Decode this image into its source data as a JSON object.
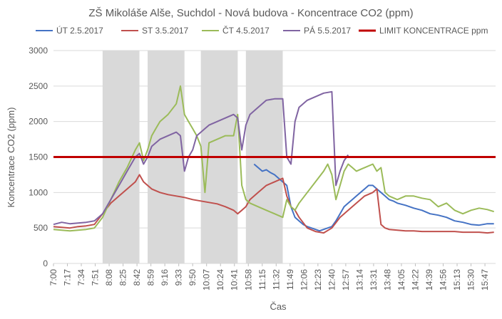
{
  "chart_data": {
    "type": "line",
    "title": "ZŠ Mikoláše Alše, Suchdol - Nová budova - Koncentrace CO2 (ppm)",
    "xlabel": "Čas",
    "ylabel": "Koncentrace CO2 (ppm)",
    "ylim": [
      0,
      3000
    ],
    "yticks": [
      "0",
      "500",
      "1000",
      "1500",
      "2000",
      "2500",
      "3000"
    ],
    "xlim": [
      "7:00",
      "16:00"
    ],
    "xticks": [
      "7:00",
      "7:17",
      "7:34",
      "7:51",
      "8:08",
      "8:25",
      "8:42",
      "8:59",
      "9:16",
      "9:33",
      "9:50",
      "10:07",
      "10:24",
      "10:41",
      "10:58",
      "11:15",
      "11:32",
      "11:49",
      "12:06",
      "12:23",
      "12:40",
      "12:57",
      "13:14",
      "13:31",
      "13:48",
      "14:05",
      "14:22",
      "14:39",
      "14:56",
      "15:13",
      "15:30",
      "15:47"
    ],
    "grid": true,
    "legend_position": "top",
    "shaded_periods": [
      [
        "8:00",
        "8:45"
      ],
      [
        "8:55",
        "9:40"
      ],
      [
        "10:00",
        "10:45"
      ],
      [
        "10:55",
        "11:40"
      ]
    ],
    "series": [
      {
        "name": "ÚT 2.5.2017",
        "color": "#4472C4",
        "x": [
          "11:05",
          "11:10",
          "11:15",
          "11:20",
          "11:25",
          "11:30",
          "11:35",
          "11:40",
          "11:45",
          "11:50",
          "11:55",
          "12:00",
          "12:05",
          "12:10",
          "12:15",
          "12:20",
          "12:25",
          "12:30",
          "12:35",
          "12:40",
          "12:45",
          "12:50",
          "12:55",
          "13:00",
          "13:05",
          "13:10",
          "13:15",
          "13:20",
          "13:25",
          "13:30",
          "13:35",
          "13:40",
          "13:45",
          "13:50",
          "13:55",
          "14:00",
          "14:10",
          "14:20",
          "14:30",
          "14:40",
          "14:50",
          "15:00",
          "15:10",
          "15:20",
          "15:30",
          "15:40",
          "15:50",
          "15:58"
        ],
        "values": [
          1400,
          1350,
          1300,
          1320,
          1280,
          1250,
          1200,
          1150,
          1100,
          800,
          650,
          600,
          550,
          520,
          500,
          480,
          460,
          480,
          500,
          520,
          600,
          700,
          800,
          850,
          900,
          950,
          1000,
          1050,
          1100,
          1100,
          1050,
          1000,
          950,
          900,
          880,
          850,
          820,
          780,
          750,
          700,
          680,
          650,
          600,
          580,
          550,
          540,
          560,
          560
        ]
      },
      {
        "name": "ST 3.5.2017",
        "color": "#C0504D",
        "x": [
          "7:00",
          "7:10",
          "7:20",
          "7:30",
          "7:40",
          "7:50",
          "8:00",
          "8:10",
          "8:20",
          "8:30",
          "8:40",
          "8:45",
          "8:50",
          "8:55",
          "9:00",
          "9:10",
          "9:20",
          "9:30",
          "9:40",
          "9:50",
          "10:00",
          "10:10",
          "10:20",
          "10:30",
          "10:40",
          "10:45",
          "10:50",
          "10:55",
          "11:00",
          "11:10",
          "11:20",
          "11:30",
          "11:40",
          "11:45",
          "11:50",
          "11:55",
          "12:00",
          "12:10",
          "12:20",
          "12:30",
          "12:40",
          "12:50",
          "13:00",
          "13:10",
          "13:20",
          "13:30",
          "13:35",
          "13:40",
          "13:45",
          "13:50",
          "14:00",
          "14:10",
          "14:20",
          "14:30",
          "14:40",
          "14:50",
          "15:00",
          "15:10",
          "15:20",
          "15:30",
          "15:40",
          "15:50",
          "15:58"
        ],
        "values": [
          520,
          510,
          500,
          520,
          530,
          550,
          700,
          850,
          950,
          1050,
          1150,
          1250,
          1150,
          1100,
          1050,
          1000,
          970,
          950,
          930,
          900,
          880,
          860,
          840,
          800,
          750,
          700,
          750,
          800,
          900,
          1000,
          1100,
          1150,
          1200,
          950,
          800,
          750,
          650,
          500,
          450,
          430,
          500,
          650,
          750,
          850,
          950,
          1000,
          1050,
          550,
          500,
          480,
          470,
          460,
          460,
          450,
          450,
          450,
          450,
          450,
          440,
          440,
          440,
          430,
          440
        ]
      },
      {
        "name": "ČT 4.5.2017",
        "color": "#9BBB59",
        "x": [
          "7:00",
          "7:10",
          "7:20",
          "7:30",
          "7:40",
          "7:50",
          "8:00",
          "8:10",
          "8:20",
          "8:30",
          "8:40",
          "8:45",
          "8:50",
          "8:55",
          "9:00",
          "9:05",
          "9:10",
          "9:20",
          "9:30",
          "9:35",
          "9:40",
          "9:45",
          "9:50",
          "9:55",
          "10:00",
          "10:05",
          "10:10",
          "10:20",
          "10:30",
          "10:40",
          "10:45",
          "10:50",
          "10:55",
          "11:00",
          "11:10",
          "11:20",
          "11:30",
          "11:40",
          "11:45",
          "11:50",
          "11:55",
          "12:00",
          "12:10",
          "12:20",
          "12:30",
          "12:35",
          "12:40",
          "12:45",
          "12:50",
          "12:55",
          "13:00",
          "13:05",
          "13:10",
          "13:20",
          "13:30",
          "13:35",
          "13:40",
          "13:45",
          "13:50",
          "14:00",
          "14:10",
          "14:20",
          "14:30",
          "14:40",
          "14:50",
          "15:00",
          "15:10",
          "15:20",
          "15:30",
          "15:40",
          "15:50",
          "15:58"
        ],
        "values": [
          480,
          470,
          460,
          470,
          480,
          500,
          650,
          900,
          1150,
          1350,
          1600,
          1700,
          1450,
          1600,
          1800,
          1900,
          2000,
          2100,
          2250,
          2500,
          2100,
          2000,
          1900,
          1800,
          1650,
          1000,
          1700,
          1750,
          1800,
          1800,
          2100,
          1100,
          900,
          850,
          800,
          750,
          700,
          650,
          900,
          800,
          750,
          850,
          1000,
          1150,
          1300,
          1400,
          1250,
          900,
          1100,
          1300,
          1400,
          1350,
          1300,
          1350,
          1400,
          1300,
          1350,
          1000,
          950,
          900,
          950,
          950,
          920,
          900,
          800,
          850,
          750,
          700,
          750,
          780,
          760,
          730
        ]
      },
      {
        "name": "PÁ 5.5.2017",
        "color": "#8064A2",
        "x": [
          "7:00",
          "7:10",
          "7:20",
          "7:30",
          "7:40",
          "7:50",
          "8:00",
          "8:10",
          "8:20",
          "8:30",
          "8:40",
          "8:45",
          "8:50",
          "8:55",
          "9:00",
          "9:10",
          "9:20",
          "9:30",
          "9:35",
          "9:40",
          "9:45",
          "9:50",
          "9:55",
          "10:00",
          "10:05",
          "10:10",
          "10:20",
          "10:30",
          "10:40",
          "10:45",
          "10:50",
          "10:55",
          "11:00",
          "11:10",
          "11:20",
          "11:30",
          "11:40",
          "11:45",
          "11:50",
          "11:55",
          "12:00",
          "12:10",
          "12:20",
          "12:30",
          "12:40",
          "12:45",
          "12:50",
          "12:55",
          "13:00"
        ],
        "values": [
          550,
          580,
          560,
          570,
          580,
          600,
          700,
          900,
          1100,
          1300,
          1500,
          1550,
          1400,
          1500,
          1650,
          1750,
          1800,
          1850,
          1800,
          1300,
          1500,
          1600,
          1800,
          1850,
          1900,
          1950,
          2000,
          2050,
          2100,
          2050,
          1600,
          1950,
          2100,
          2200,
          2300,
          2320,
          2320,
          1500,
          1400,
          2000,
          2200,
          2300,
          2350,
          2400,
          2420,
          1100,
          1300,
          1450,
          1530
        ]
      },
      {
        "name": "LIMIT KONCENTRACE ppm",
        "color": "#C00000",
        "x": [
          "7:00",
          "16:00"
        ],
        "values": [
          1500,
          1500
        ]
      }
    ]
  }
}
